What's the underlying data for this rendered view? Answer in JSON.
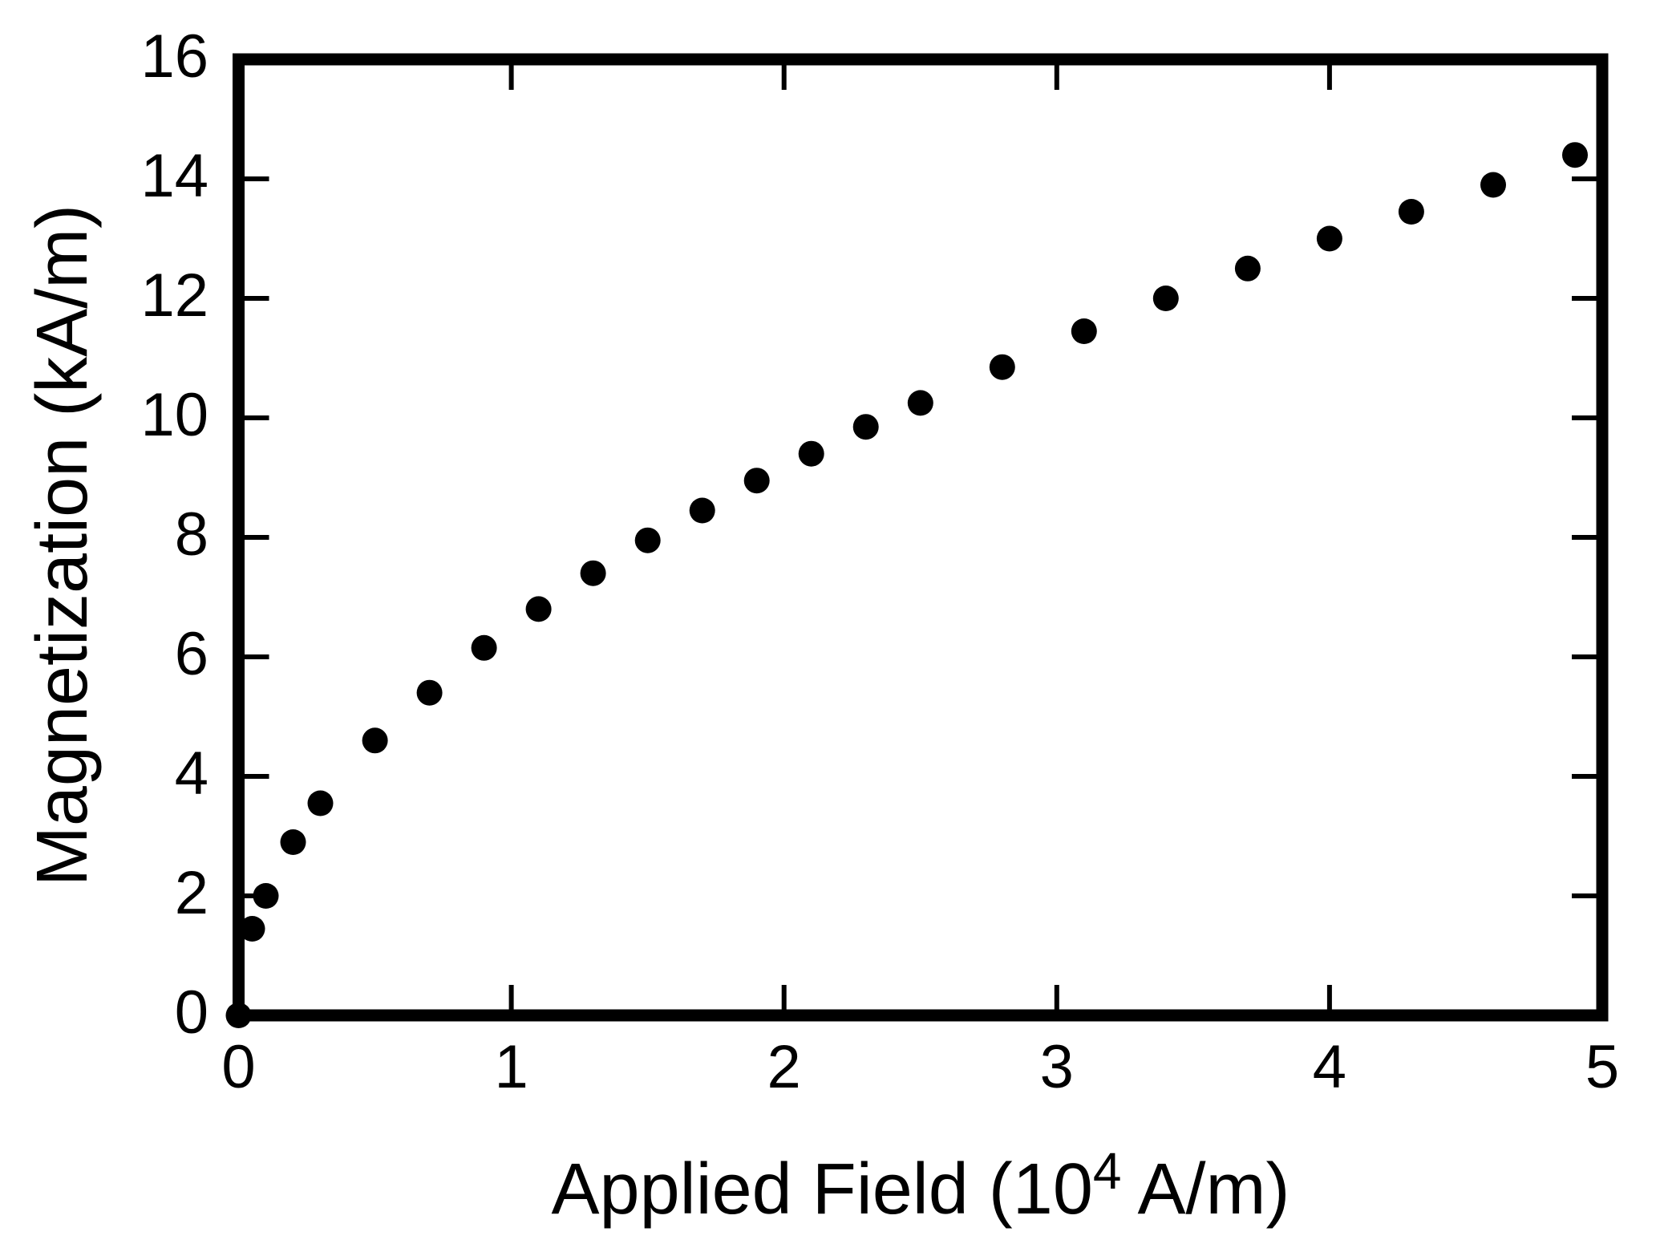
{
  "chart_data": {
    "type": "scatter",
    "title": "",
    "xlabel": {
      "prefix": "Applied Field (10",
      "superscript": "4",
      "suffix": " A/m)",
      "plain": "Applied Field (10^4 A/m)"
    },
    "ylabel": "Magnetization (kA/m)",
    "axes": {
      "xlim": [
        0,
        5
      ],
      "ylim": [
        0,
        16
      ],
      "x_tick_labels": [
        "0",
        "1",
        "2",
        "3",
        "4",
        "5"
      ],
      "y_tick_labels": [
        "0",
        "2",
        "4",
        "6",
        "8",
        "10",
        "12",
        "14",
        "16"
      ],
      "grid": false,
      "frame": "full box",
      "tick_direction": "in",
      "ticks_mirrored": true
    },
    "legend": null,
    "series": [
      {
        "name": "magnetization-vs-applied-field",
        "marker": "filled-circle",
        "color": "#000000",
        "points": [
          [
            0,
            0
          ],
          [
            0.05,
            1.45
          ],
          [
            0.1,
            2.0
          ],
          [
            0.2,
            2.9
          ],
          [
            0.3,
            3.55
          ],
          [
            0.5,
            4.6
          ],
          [
            0.7,
            5.4
          ],
          [
            0.9,
            6.15
          ],
          [
            1.1,
            6.8
          ],
          [
            1.3,
            7.4
          ],
          [
            1.5,
            7.95
          ],
          [
            1.7,
            8.45
          ],
          [
            1.9,
            8.95
          ],
          [
            2.1,
            9.4
          ],
          [
            2.3,
            9.85
          ],
          [
            2.5,
            10.25
          ],
          [
            2.8,
            10.85
          ],
          [
            3.1,
            11.45
          ],
          [
            3.4,
            12.0
          ],
          [
            3.7,
            12.5
          ],
          [
            4.0,
            13.0
          ],
          [
            4.3,
            13.45
          ],
          [
            4.6,
            13.9
          ],
          [
            4.9,
            14.4
          ]
        ]
      }
    ],
    "colors": {
      "foreground": "#000000",
      "background": "#ffffff"
    }
  }
}
